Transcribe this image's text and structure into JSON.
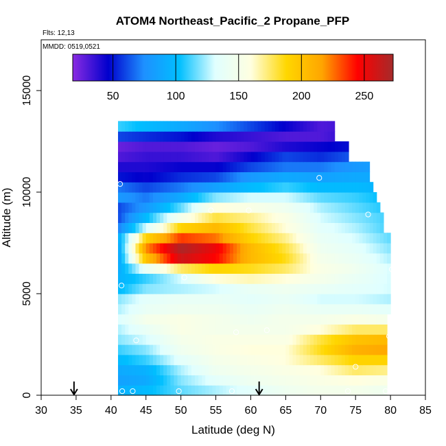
{
  "chart_data": {
    "type": "heatmap",
    "title": "ATOM4 Northeast_Pacific_2 Propane_PFP",
    "flights_label": "Flts: 12,13",
    "dates_label": "MMDD: 0519,0521",
    "xlabel": "Latitude (deg N)",
    "ylabel": "Altitude (m)",
    "xlim": [
      30,
      85
    ],
    "ylim": [
      0,
      17500
    ],
    "x_ticks": [
      "30",
      "35",
      "40",
      "45",
      "50",
      "55",
      "60",
      "65",
      "70",
      "75",
      "80",
      "85"
    ],
    "y_ticks": [
      "0",
      "5000",
      "10000",
      "15000"
    ],
    "colorbar": {
      "range": [
        18,
        273
      ],
      "ticks": [
        "50",
        "100",
        "150",
        "200",
        "250"
      ],
      "colors": [
        "#8a2be2",
        "#0000cd",
        "#1e90ff",
        "#00bfff",
        "#e0ffff",
        "#ffffe0",
        "#ffd700",
        "#ffa500",
        "#ff0000",
        "#a52a2a"
      ]
    },
    "arrows_lat": [
      34.7,
      61.2
    ],
    "samples": [
      {
        "lat": 41.3,
        "alt": 10400
      },
      {
        "lat": 69.8,
        "alt": 10700
      },
      {
        "lat": 54.3,
        "alt": 9100
      },
      {
        "lat": 59.7,
        "alt": 9100
      },
      {
        "lat": 76.8,
        "alt": 8900
      },
      {
        "lat": 80.2,
        "alt": 6200
      },
      {
        "lat": 50.5,
        "alt": 5800
      },
      {
        "lat": 41.5,
        "alt": 5400
      },
      {
        "lat": 57.9,
        "alt": 3100
      },
      {
        "lat": 62.3,
        "alt": 3200
      },
      {
        "lat": 43.6,
        "alt": 2700
      },
      {
        "lat": 79.8,
        "alt": 2900
      },
      {
        "lat": 75.0,
        "alt": 1400
      },
      {
        "lat": 41.6,
        "alt": 200
      },
      {
        "lat": 43.1,
        "alt": 200
      },
      {
        "lat": 49.7,
        "alt": 200
      },
      {
        "lat": 57.3,
        "alt": 200
      },
      {
        "lat": 73.9,
        "alt": 200
      },
      {
        "lat": 79.3,
        "alt": 200
      }
    ],
    "grid": {
      "lat_min": 41,
      "lat_step": 0.5,
      "alt_min": 0,
      "alt_step": 500,
      "lat_max_by_row": [
        79.5,
        79.5,
        79.5,
        79.5,
        79.5,
        79.5,
        79.5,
        79.5,
        80,
        80,
        80,
        80,
        80,
        80,
        80,
        80,
        79,
        79,
        78.5,
        78,
        77.5,
        77,
        77,
        74,
        74,
        72,
        72
      ],
      "anchors": [
        {
          "lat": 41,
          "row": 0,
          "vals": [
            95,
            85,
            90,
            100,
            110,
            120,
            125,
            130,
            125,
            120,
            100,
            95,
            90,
            85,
            85,
            90,
            70,
            60,
            60,
            80,
            70,
            50,
            40,
            30,
            25,
            60,
            110
          ]
        },
        {
          "lat": 45,
          "row": 0,
          "vals": [
            100,
            90,
            95,
            110,
            120,
            130,
            140,
            150,
            140,
            135,
            120,
            110,
            140,
            200,
            220,
            190,
            130,
            100,
            80,
            70,
            60,
            45,
            40,
            35,
            30,
            55,
            100
          ]
        },
        {
          "lat": 50,
          "row": 0,
          "vals": [
            115,
            120,
            125,
            135,
            145,
            150,
            155,
            155,
            145,
            140,
            125,
            130,
            175,
            260,
            270,
            235,
            190,
            150,
            115,
            90,
            70,
            55,
            45,
            35,
            30,
            50,
            90
          ]
        },
        {
          "lat": 55,
          "row": 0,
          "vals": [
            125,
            135,
            145,
            150,
            155,
            155,
            150,
            150,
            145,
            140,
            130,
            160,
            190,
            245,
            250,
            225,
            205,
            180,
            160,
            120,
            85,
            60,
            45,
            30,
            25,
            40,
            75
          ]
        },
        {
          "lat": 60,
          "row": 0,
          "vals": [
            135,
            145,
            150,
            155,
            160,
            155,
            150,
            145,
            140,
            135,
            140,
            165,
            185,
            205,
            205,
            190,
            180,
            170,
            155,
            130,
            100,
            80,
            60,
            45,
            30,
            35,
            60
          ]
        },
        {
          "lat": 65,
          "row": 0,
          "vals": [
            145,
            150,
            155,
            160,
            160,
            155,
            150,
            150,
            145,
            140,
            145,
            160,
            175,
            185,
            180,
            170,
            160,
            155,
            145,
            130,
            110,
            90,
            70,
            60,
            40,
            30,
            45
          ]
        },
        {
          "lat": 70,
          "row": 0,
          "vals": [
            150,
            155,
            160,
            175,
            185,
            180,
            160,
            150,
            140,
            130,
            140,
            150,
            155,
            150,
            145,
            140,
            135,
            130,
            125,
            115,
            100,
            85,
            70,
            55,
            45,
            30,
            30
          ]
        },
        {
          "lat": 75,
          "row": 0,
          "vals": [
            150,
            160,
            175,
            190,
            210,
            200,
            175,
            155,
            140,
            130,
            135,
            140,
            145,
            140,
            135,
            130,
            125,
            120,
            115,
            110,
            100,
            90,
            80,
            65,
            50,
            40,
            35
          ]
        },
        {
          "lat": 80,
          "row": 0,
          "vals": [
            145,
            155,
            170,
            190,
            215,
            205,
            175,
            150,
            135,
            125,
            130,
            130,
            130,
            125,
            120,
            115,
            110,
            110,
            105,
            100,
            95,
            90,
            85,
            80,
            70,
            60,
            55
          ]
        }
      ]
    }
  }
}
